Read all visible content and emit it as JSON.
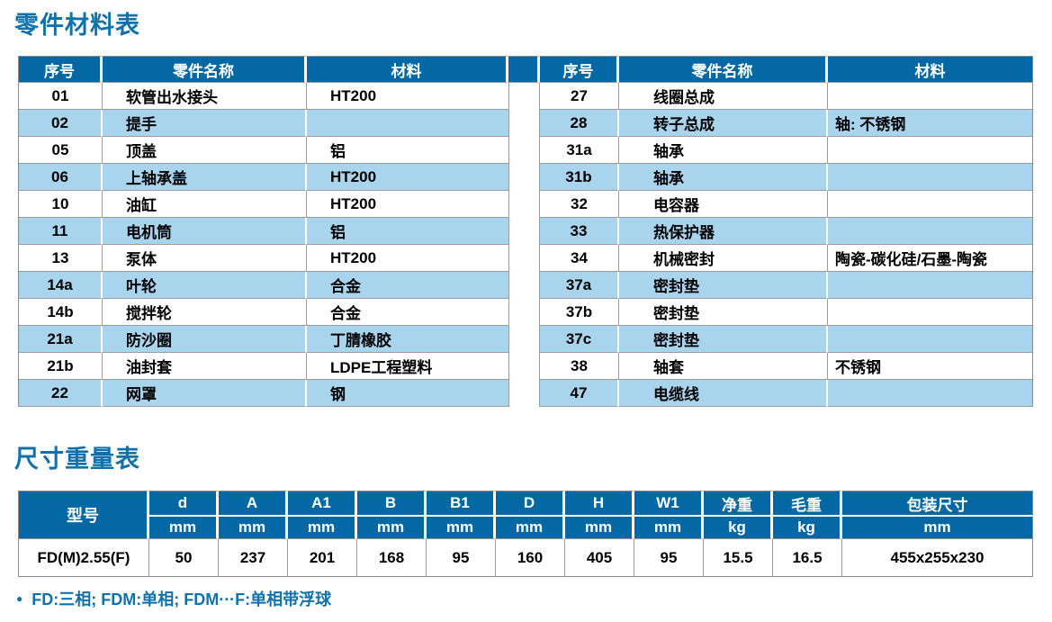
{
  "colors": {
    "header_blue": "#0368a4",
    "row_blue": "#a9d4ee",
    "title_blue": "#1171ab",
    "border_gray": "#9b9b9b"
  },
  "parts_table": {
    "title": "零件材料表",
    "headers": {
      "no": "序号",
      "name": "零件名称",
      "material": "材料"
    },
    "left_rows": [
      [
        "01",
        "软管出水接头",
        "HT200"
      ],
      [
        "02",
        "提手",
        ""
      ],
      [
        "05",
        "顶盖",
        "铝"
      ],
      [
        "06",
        "上轴承盖",
        "HT200"
      ],
      [
        "10",
        "油缸",
        "HT200"
      ],
      [
        "11",
        "电机筒",
        "铝"
      ],
      [
        "13",
        "泵体",
        "HT200"
      ],
      [
        "14a",
        "叶轮",
        "合金"
      ],
      [
        "14b",
        "搅拌轮",
        "合金"
      ],
      [
        "21a",
        "防沙圈",
        "丁腈橡胶"
      ],
      [
        "21b",
        "油封套",
        "LDPE工程塑料"
      ],
      [
        "22",
        "网罩",
        "钢"
      ]
    ],
    "right_rows": [
      [
        "27",
        "线圈总成",
        ""
      ],
      [
        "28",
        "转子总成",
        "轴: 不锈钢"
      ],
      [
        "31a",
        "轴承",
        ""
      ],
      [
        "31b",
        "轴承",
        ""
      ],
      [
        "32",
        "电容器",
        ""
      ],
      [
        "33",
        "热保护器",
        ""
      ],
      [
        "34",
        "机械密封",
        "陶瓷-碳化硅/石墨-陶瓷"
      ],
      [
        "37a",
        "密封垫",
        ""
      ],
      [
        "37b",
        "密封垫",
        ""
      ],
      [
        "37c",
        "密封垫",
        ""
      ],
      [
        "38",
        "轴套",
        "不锈钢"
      ],
      [
        "47",
        "电缆线",
        ""
      ]
    ]
  },
  "dimension_table": {
    "title": "尺寸重量表",
    "model_header": "型号",
    "columns": [
      {
        "label": "d",
        "unit": "mm"
      },
      {
        "label": "A",
        "unit": "mm"
      },
      {
        "label": "A1",
        "unit": "mm"
      },
      {
        "label": "B",
        "unit": "mm"
      },
      {
        "label": "B1",
        "unit": "mm"
      },
      {
        "label": "D",
        "unit": "mm"
      },
      {
        "label": "H",
        "unit": "mm"
      },
      {
        "label": "W1",
        "unit": "mm"
      },
      {
        "label": "净重",
        "unit": "kg"
      },
      {
        "label": "毛重",
        "unit": "kg"
      },
      {
        "label": "包装尺寸",
        "unit": "mm"
      }
    ],
    "rows": [
      {
        "model": "FD(M)2.55(F)",
        "values": [
          "50",
          "237",
          "201",
          "168",
          "95",
          "160",
          "405",
          "95",
          "15.5",
          "16.5",
          "455x255x230"
        ]
      }
    ]
  },
  "footnote": {
    "bullet": "●",
    "text": "FD:三相; FDM:单相; FDM···F:单相带浮球"
  }
}
